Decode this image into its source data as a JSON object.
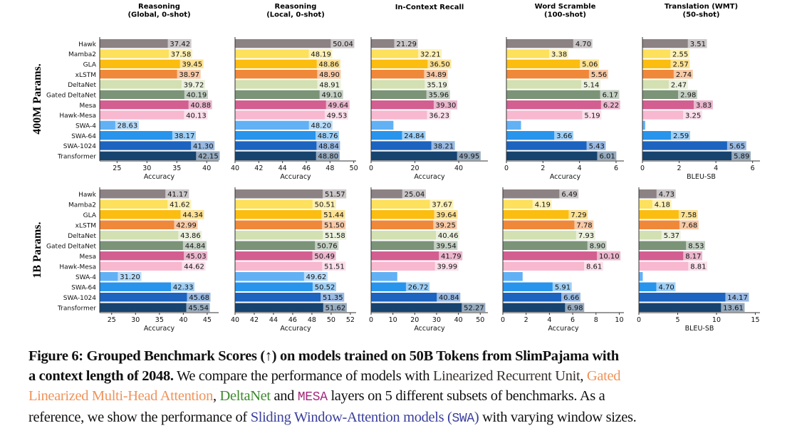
{
  "models": [
    "Hawk",
    "Mamba2",
    "GLA",
    "xLSTM",
    "DeltaNet",
    "Gated DeltaNet",
    "Mesa",
    "Hawk-Mesa",
    "SWA-4",
    "SWA-64",
    "SWA-1024",
    "Transformer"
  ],
  "colors": [
    "#8c8283",
    "#fde05c",
    "#fbbd0f",
    "#f0883a",
    "#d3e0b1",
    "#7b9478",
    "#d35f91",
    "#f7b8d0",
    "#62b1f5",
    "#2894ec",
    "#1c64bf",
    "#17436f"
  ],
  "groups": [
    "400M Params.",
    "1B Params."
  ],
  "chart_data": [
    {
      "type": "bar",
      "orientation": "horizontal",
      "group": "400M Params.",
      "title": "Reasoning\n(Global, 0-shot)",
      "xlabel": "Accuracy",
      "xlim": [
        22.1,
        42.0
      ],
      "ticks": [
        25,
        30,
        35,
        40
      ],
      "values": [
        37.42,
        37.58,
        39.45,
        38.97,
        39.72,
        40.19,
        40.88,
        40.13,
        28.63,
        38.17,
        41.3,
        42.15
      ],
      "labels": [
        "37.42",
        "37.58",
        "39.45",
        "38.97",
        "39.72",
        "40.19",
        "40.88",
        "40.13",
        "28.63",
        "38.17",
        "41.30",
        "42.15"
      ]
    },
    {
      "type": "bar",
      "orientation": "horizontal",
      "group": "400M Params.",
      "title": "Reasoning\n(Local, 0-shot)",
      "xlabel": "Accuracy",
      "xlim": [
        40,
        50.2
      ],
      "ticks": [
        40,
        42,
        44,
        46,
        48,
        50
      ],
      "values": [
        50.04,
        48.19,
        48.86,
        48.9,
        48.91,
        49.1,
        49.64,
        49.53,
        48.2,
        48.76,
        48.84,
        48.8
      ],
      "labels": [
        "50.04",
        "48.19",
        "48.86",
        "48.90",
        "48.91",
        "49.10",
        "49.64",
        "49.53",
        "48.20",
        "48.76",
        "48.84",
        "48.80"
      ]
    },
    {
      "type": "bar",
      "orientation": "horizontal",
      "group": "400M Params.",
      "title": "In-Context Recall",
      "xlabel": "Accuracy",
      "xlim": [
        0,
        53.3
      ],
      "ticks": [
        0,
        20,
        40
      ],
      "values": [
        21.29,
        32.21,
        36.5,
        34.89,
        35.19,
        35.96,
        39.3,
        36.23,
        10.2,
        24.84,
        38.21,
        49.95
      ],
      "labels": [
        "21.29",
        "32.21",
        "36.50",
        "34.89",
        "35.19",
        "35.96",
        "39.30",
        "36.23",
        "",
        "24.84",
        "38.21",
        "49.95"
      ]
    },
    {
      "type": "bar",
      "orientation": "horizontal",
      "group": "400M Params.",
      "title": "Word Scramble\n(100-shot)",
      "xlabel": "Accuracy",
      "xlim": [
        0,
        6.43
      ],
      "ticks": [
        0,
        2,
        4,
        6
      ],
      "values": [
        4.7,
        3.38,
        5.06,
        5.56,
        5.14,
        6.17,
        6.22,
        5.19,
        0.8,
        3.66,
        5.43,
        6.01
      ],
      "labels": [
        "4.70",
        "3.38",
        "5.06",
        "5.56",
        "5.14",
        "6.17",
        "6.22",
        "5.19",
        "",
        "3.66",
        "5.43",
        "6.01"
      ]
    },
    {
      "type": "bar",
      "orientation": "horizontal",
      "group": "400M Params.",
      "title": "Translation (WMT)\n(50-shot)",
      "xlabel": "BLEU-SB",
      "xlim": [
        0,
        6.4
      ],
      "ticks": [
        0,
        2,
        4,
        6
      ],
      "values": [
        3.51,
        2.55,
        2.57,
        2.74,
        2.47,
        2.98,
        3.83,
        3.25,
        0.15,
        2.59,
        5.65,
        5.89
      ],
      "labels": [
        "3.51",
        "2.55",
        "2.57",
        "2.74",
        "2.47",
        "2.98",
        "3.83",
        "3.25",
        "",
        "2.59",
        "5.65",
        "5.89"
      ]
    },
    {
      "type": "bar",
      "orientation": "horizontal",
      "group": "1B Params.",
      "title": "",
      "xlabel": "Accuracy",
      "xlim": [
        22.5,
        47.4
      ],
      "ticks": [
        25,
        30,
        35,
        40,
        45
      ],
      "values": [
        41.17,
        41.62,
        44.34,
        42.99,
        43.86,
        44.84,
        45.03,
        44.62,
        31.2,
        42.33,
        45.68,
        45.54
      ],
      "labels": [
        "41.17",
        "41.62",
        "44.34",
        "42.99",
        "43.86",
        "44.84",
        "45.03",
        "44.62",
        "31.20",
        "42.33",
        "45.68",
        "45.54"
      ]
    },
    {
      "type": "bar",
      "orientation": "horizontal",
      "group": "1B Params.",
      "title": "",
      "xlabel": "Accuracy",
      "xlim": [
        40,
        52.6
      ],
      "ticks": [
        40,
        42,
        44,
        46,
        48,
        50,
        52
      ],
      "values": [
        51.57,
        50.51,
        51.44,
        51.5,
        51.58,
        50.76,
        50.49,
        51.51,
        49.62,
        50.52,
        51.35,
        51.62
      ],
      "labels": [
        "51.57",
        "50.51",
        "51.44",
        "51.50",
        "51.58",
        "50.76",
        "50.49",
        "51.51",
        "49.62",
        "50.52",
        "51.35",
        "51.62"
      ]
    },
    {
      "type": "bar",
      "orientation": "horizontal",
      "group": "1B Params.",
      "title": "",
      "xlabel": "Accuracy",
      "xlim": [
        0,
        53.5
      ],
      "ticks": [
        0,
        10,
        20,
        30,
        40,
        50
      ],
      "values": [
        25.04,
        37.67,
        39.64,
        39.25,
        40.46,
        39.54,
        41.79,
        39.99,
        12.0,
        26.72,
        40.84,
        52.27
      ],
      "labels": [
        "25.04",
        "37.67",
        "39.64",
        "39.25",
        "40.46",
        "39.54",
        "41.79",
        "39.99",
        "",
        "26.72",
        "40.84",
        "52.27"
      ]
    },
    {
      "type": "bar",
      "orientation": "horizontal",
      "group": "1B Params.",
      "title": "",
      "xlabel": "Accuracy",
      "xlim": [
        0,
        10.4
      ],
      "ticks": [
        0,
        2,
        4,
        6,
        8,
        10
      ],
      "values": [
        6.49,
        4.19,
        7.29,
        7.78,
        7.93,
        8.9,
        10.1,
        8.61,
        1.7,
        5.91,
        6.66,
        6.98
      ],
      "labels": [
        "6.49",
        "4.19",
        "7.29",
        "7.78",
        "7.93",
        "8.90",
        "10.10",
        "8.61",
        "",
        "5.91",
        "6.66",
        "6.98"
      ]
    },
    {
      "type": "bar",
      "orientation": "horizontal",
      "group": "1B Params.",
      "title": "",
      "xlabel": "BLEU-SB",
      "xlim": [
        0,
        15.6
      ],
      "ticks": [
        0,
        5,
        10,
        15
      ],
      "values": [
        4.73,
        4.18,
        7.58,
        7.68,
        5.37,
        8.53,
        8.17,
        8.81,
        0.5,
        4.7,
        14.17,
        13.61
      ],
      "labels": [
        "4.73",
        "4.18",
        "7.58",
        "7.68",
        "5.37",
        "8.53",
        "8.17",
        "8.81",
        "",
        "4.70",
        "14.17",
        "13.61"
      ]
    }
  ],
  "caption": {
    "bold": "Figure 6: Grouped Benchmark Scores (↑) on models trained on 50B Tokens from SlimPajama with",
    "bold2": "a context length of 2048.",
    "t1": " We compare the performance of models with ",
    "lru": "Linearized Recurrent Unit",
    "t2": ", ",
    "gla1": "Gated",
    "gla2": "Linearized Multi-Head Attention",
    "t3": ",  ",
    "dn": "DeltaNet",
    "t4": " and ",
    "mesa": "MESA",
    "t5": " layers on 5 different subsets of benchmarks.  As a",
    "t6": "reference, we show the performance of ",
    "swa": "Sliding Window-Attention models (",
    "swa_mono": "SWA",
    "swa_end": ")",
    "t7": " with varying window sizes."
  }
}
